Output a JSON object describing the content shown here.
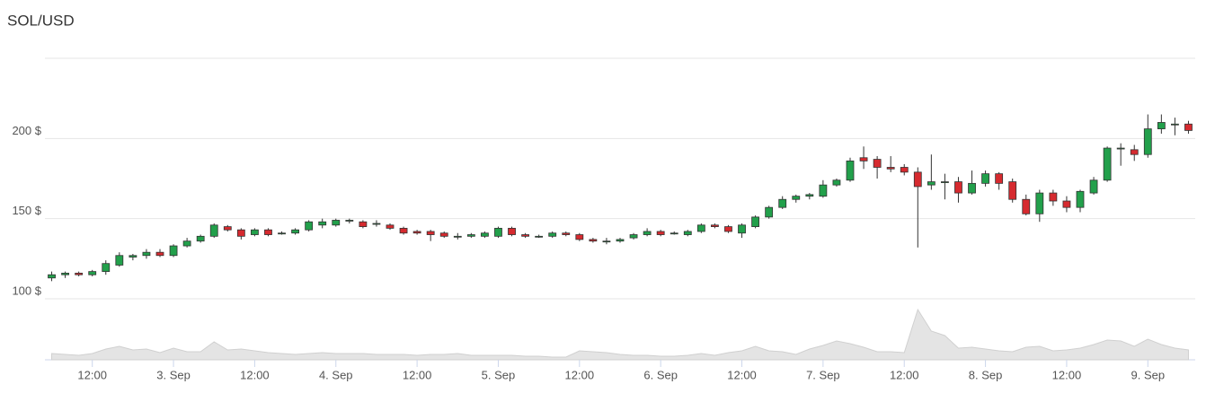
{
  "chart_data": {
    "type": "candlestick",
    "title": "SOL/USD",
    "categories": [
      null,
      null,
      null,
      "12:00",
      null,
      null,
      null,
      null,
      null,
      "3. Sep",
      null,
      null,
      null,
      null,
      null,
      "12:00",
      null,
      null,
      null,
      null,
      null,
      "4. Sep",
      null,
      null,
      null,
      null,
      null,
      "12:00",
      null,
      null,
      null,
      null,
      null,
      "5. Sep",
      null,
      null,
      null,
      null,
      null,
      "12:00",
      null,
      null,
      null,
      null,
      null,
      "6. Sep",
      null,
      null,
      null,
      null,
      null,
      "12:00",
      null,
      null,
      null,
      null,
      null,
      "7. Sep",
      null,
      null,
      null,
      null,
      null,
      "12:00",
      null,
      null,
      null,
      null,
      null,
      "8. Sep",
      null,
      null,
      null,
      null,
      null,
      "12:00",
      null,
      null,
      null,
      null,
      null,
      "9. Sep",
      null,
      null,
      null
    ],
    "open": [
      113,
      115,
      116,
      115,
      117,
      121,
      126,
      127,
      129,
      127,
      133,
      136,
      139,
      145,
      143,
      140,
      143,
      141,
      141,
      143,
      146,
      146,
      149,
      148,
      147,
      146,
      144,
      142,
      142,
      141,
      139,
      139,
      139,
      139,
      144,
      140,
      139,
      139,
      141,
      140,
      137,
      136,
      136,
      138,
      140,
      142,
      141,
      140,
      142,
      146,
      145,
      141,
      145,
      151,
      157,
      162,
      164,
      164,
      171,
      174,
      188,
      187,
      182,
      182,
      179,
      171,
      173,
      173,
      166,
      172,
      178,
      173,
      162,
      153,
      166,
      161,
      157,
      166,
      174,
      194,
      193,
      190,
      206,
      209,
      209
    ],
    "high": [
      117,
      117,
      117,
      118,
      124,
      129,
      128,
      131,
      131,
      134,
      138,
      140,
      147,
      146,
      144,
      144,
      144,
      142,
      144,
      149,
      150,
      150,
      150,
      149,
      149,
      147,
      145,
      143,
      143,
      142,
      141,
      141,
      142,
      145,
      145,
      141,
      140,
      142,
      142,
      141,
      138,
      138,
      138,
      141,
      144,
      143,
      142,
      143,
      147,
      147,
      146,
      147,
      152,
      158,
      164,
      165,
      166,
      174,
      175,
      188,
      195,
      189,
      189,
      184,
      182,
      190,
      178,
      176,
      180,
      180,
      179,
      175,
      165,
      168,
      168,
      164,
      168,
      176,
      195,
      197,
      196,
      215,
      215,
      213,
      211
    ],
    "low": [
      111,
      113,
      114,
      114,
      115,
      120,
      124,
      125,
      126,
      126,
      132,
      135,
      138,
      142,
      137,
      139,
      139,
      140,
      140,
      142,
      144,
      145,
      147,
      144,
      145,
      143,
      140,
      140,
      136,
      138,
      137,
      138,
      138,
      138,
      139,
      138,
      138,
      138,
      139,
      136,
      135,
      134,
      135,
      137,
      139,
      139,
      140,
      139,
      141,
      144,
      141,
      138,
      144,
      150,
      156,
      160,
      162,
      163,
      170,
      173,
      181,
      175,
      179,
      177,
      132,
      168,
      162,
      160,
      165,
      170,
      168,
      160,
      152,
      148,
      158,
      154,
      154,
      165,
      173,
      183,
      186,
      188,
      203,
      202,
      203
    ],
    "close": [
      115,
      116,
      115,
      117,
      122,
      127,
      127,
      129,
      127,
      133,
      136,
      139,
      146,
      143,
      139,
      143,
      140,
      141,
      143,
      148,
      148,
      149,
      149,
      145,
      147,
      144,
      141,
      141,
      140,
      139,
      139,
      140,
      141,
      144,
      140,
      139,
      139,
      141,
      140,
      137,
      136,
      136,
      137,
      140,
      142,
      140,
      141,
      142,
      146,
      145,
      142,
      146,
      151,
      157,
      162,
      164,
      165,
      171,
      174,
      186,
      186,
      182,
      181,
      179,
      170,
      173,
      173,
      166,
      172,
      178,
      172,
      162,
      153,
      166,
      161,
      157,
      167,
      174,
      194,
      194,
      190,
      206,
      210,
      209,
      205
    ],
    "up_color": "#22a04b",
    "down_color": "#d62a2f",
    "ylim": [
      100,
      250
    ],
    "yticks": [
      {
        "value": 100,
        "label": "100 $"
      },
      {
        "value": 150,
        "label": "150 $"
      },
      {
        "value": 200,
        "label": "200 $"
      }
    ],
    "grid": true,
    "volume": {
      "color": "#e4e4e4",
      "ylim": [
        0,
        60
      ],
      "values": [
        7,
        6,
        5,
        7,
        12,
        15,
        11,
        12,
        8,
        13,
        9,
        9,
        20,
        11,
        12,
        10,
        8,
        7,
        6,
        7,
        8,
        7,
        7,
        7,
        6,
        6,
        6,
        5,
        6,
        6,
        7,
        5,
        5,
        5,
        5,
        4,
        4,
        3,
        3,
        10,
        9,
        8,
        6,
        5,
        5,
        4,
        4,
        5,
        7,
        5,
        8,
        10,
        15,
        10,
        9,
        6,
        12,
        16,
        21,
        18,
        14,
        9,
        9,
        8,
        56,
        32,
        27,
        13,
        14,
        12,
        10,
        9,
        14,
        15,
        10,
        11,
        13,
        17,
        22,
        21,
        15,
        23,
        17,
        13,
        11
      ]
    }
  }
}
